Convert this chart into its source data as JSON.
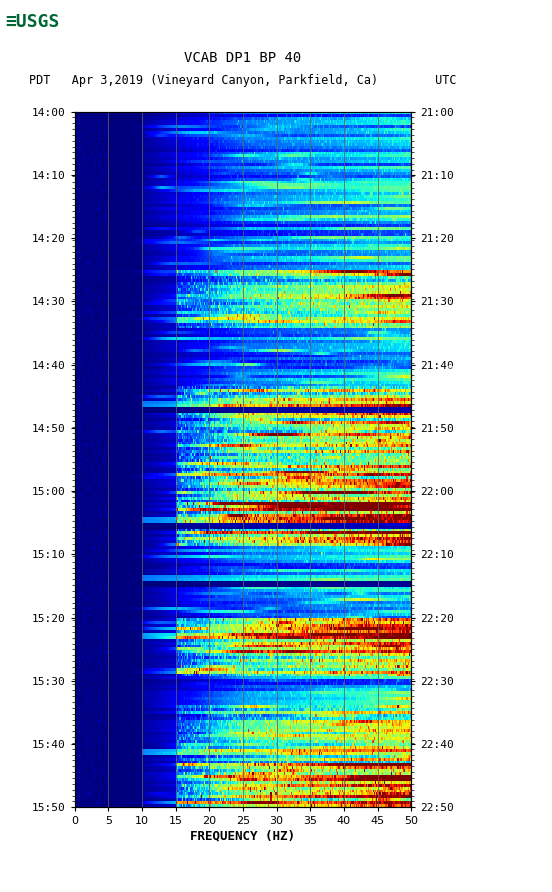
{
  "title_line1": "VCAB DP1 BP 40",
  "title_line2": "PDT   Apr 3,2019 (Vineyard Canyon, Parkfield, Ca)        UTC",
  "xlabel": "FREQUENCY (HZ)",
  "freq_min": 0,
  "freq_max": 50,
  "yticks_pdt": [
    "14:00",
    "14:10",
    "14:20",
    "14:30",
    "14:40",
    "14:50",
    "15:00",
    "15:10",
    "15:20",
    "15:30",
    "15:40",
    "15:50"
  ],
  "yticks_utc": [
    "21:00",
    "21:10",
    "21:20",
    "21:30",
    "21:40",
    "21:50",
    "22:00",
    "22:10",
    "22:20",
    "22:30",
    "22:40",
    "22:50"
  ],
  "freq_ticks": [
    0,
    5,
    10,
    15,
    20,
    25,
    30,
    35,
    40,
    45,
    50
  ],
  "vertical_lines": [
    5,
    10,
    15,
    20,
    25,
    30,
    35,
    40,
    45
  ],
  "background_color": "#ffffff",
  "colormap": "jet",
  "font_family": "monospace",
  "usgs_color": "#006633",
  "right_panel_color": "#000000",
  "n_time": 240,
  "n_freq": 300,
  "vmin": 0.0,
  "vmax": 1.0
}
